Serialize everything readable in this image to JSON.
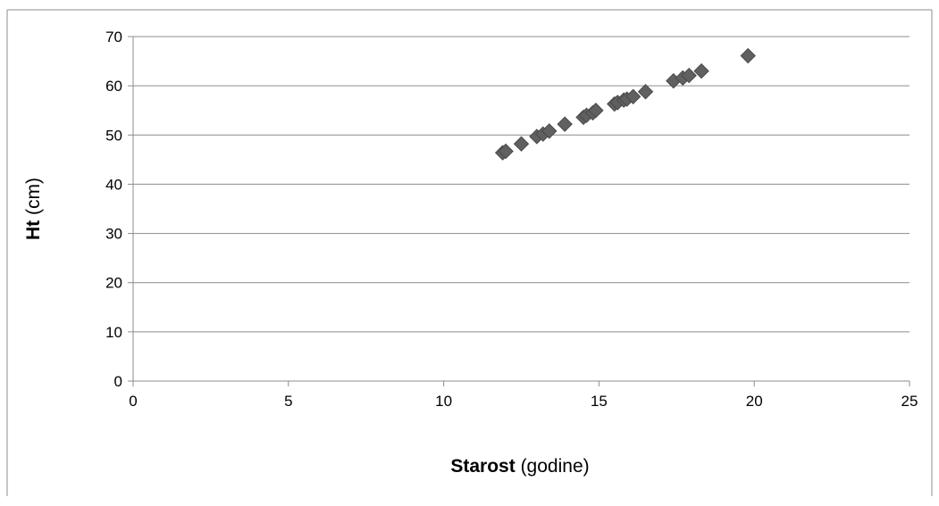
{
  "chart_data": {
    "type": "scatter",
    "title": "",
    "xlabel": {
      "bold": "Starost",
      "rest": " (godine)"
    },
    "ylabel": {
      "bold": "Ht",
      "rest": " (cm)"
    },
    "xlim": [
      0,
      25
    ],
    "ylim": [
      0,
      70
    ],
    "x_ticks": [
      0,
      5,
      10,
      15,
      20,
      25
    ],
    "y_ticks": [
      0,
      10,
      20,
      30,
      40,
      50,
      60,
      70
    ],
    "x_tick_labels": [
      "0",
      "5",
      "10",
      "15",
      "20",
      "25"
    ],
    "y_tick_labels": [
      "0",
      "10",
      "20",
      "30",
      "40",
      "50",
      "60",
      "70"
    ],
    "grid": "horizontal",
    "legend": "none",
    "marker": "diamond",
    "marker_color": "#606060",
    "series": [
      {
        "points": [
          [
            11.9,
            46.4
          ],
          [
            12.0,
            46.7
          ],
          [
            12.5,
            48.2
          ],
          [
            13.0,
            49.7
          ],
          [
            13.2,
            50.2
          ],
          [
            13.4,
            50.8
          ],
          [
            13.9,
            52.2
          ],
          [
            14.5,
            53.6
          ],
          [
            14.6,
            54.0
          ],
          [
            14.8,
            54.5
          ],
          [
            14.9,
            55.0
          ],
          [
            15.5,
            56.3
          ],
          [
            15.6,
            56.6
          ],
          [
            15.8,
            57.1
          ],
          [
            15.9,
            57.3
          ],
          [
            16.1,
            57.8
          ],
          [
            16.5,
            58.8
          ],
          [
            17.4,
            61.0
          ],
          [
            17.7,
            61.6
          ],
          [
            17.9,
            62.1
          ],
          [
            18.3,
            63.0
          ],
          [
            19.8,
            66.1
          ]
        ]
      }
    ]
  }
}
